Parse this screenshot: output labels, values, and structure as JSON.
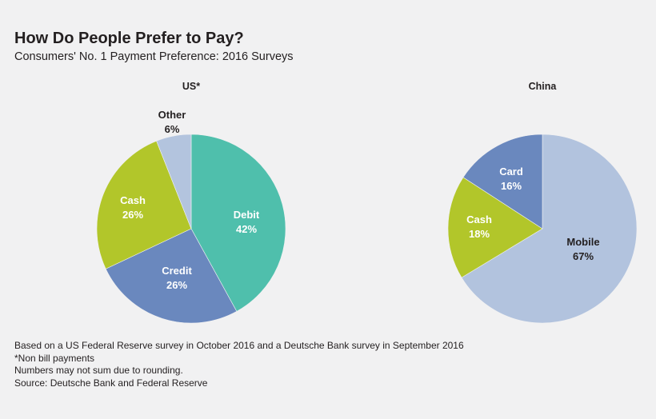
{
  "title": "How Do People Prefer to Pay?",
  "subtitle": "Consumers' No. 1 Payment Preference: 2016 Surveys",
  "chart_data": [
    {
      "type": "pie",
      "title": "US*",
      "slices": [
        {
          "label": "Debit",
          "value": 42,
          "value_text": "42%",
          "color": "#4fbfac"
        },
        {
          "label": "Credit",
          "value": 26,
          "value_text": "26%",
          "color": "#6a88be"
        },
        {
          "label": "Cash",
          "value": 26,
          "value_text": "26%",
          "color": "#b2c62a"
        },
        {
          "label": "Other",
          "value": 6,
          "value_text": "6%",
          "color": "#b3c4de"
        }
      ]
    },
    {
      "type": "pie",
      "title": "China",
      "slices": [
        {
          "label": "Mobile",
          "value": 67,
          "value_text": "67%",
          "color": "#b2c3de"
        },
        {
          "label": "Cash",
          "value": 18,
          "value_text": "18%",
          "color": "#b2c62a"
        },
        {
          "label": "Card",
          "value": 16,
          "value_text": "16%",
          "color": "#6a88be"
        }
      ]
    }
  ],
  "footnotes": [
    "Based on a US Federal Reserve survey in October 2016 and a Deutsche Bank survey in September 2016",
    "*Non bill payments",
    "Numbers may not sum due to rounding.",
    "Source: Deutsche Bank and Federal Reserve"
  ]
}
